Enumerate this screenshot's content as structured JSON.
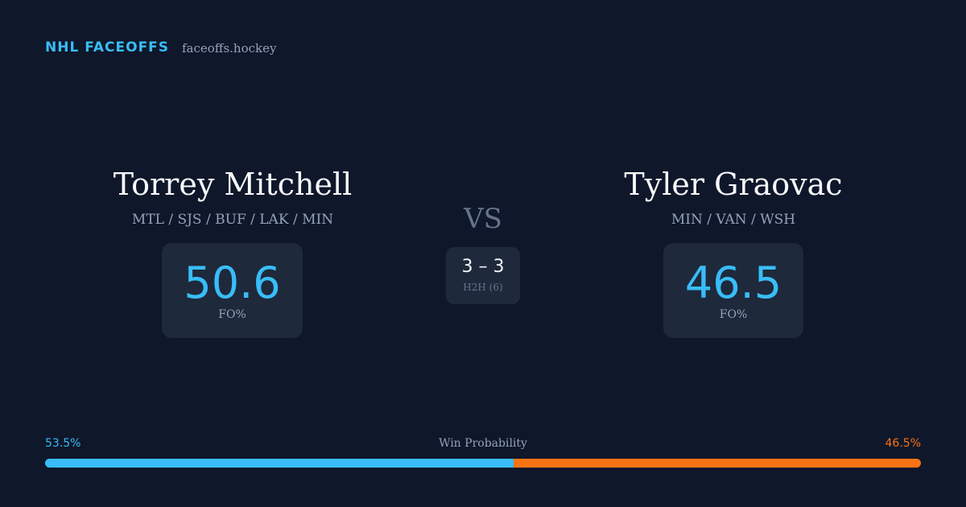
{
  "header": {
    "title": "NHL FACEOFFS",
    "site": "faceoffs.hockey"
  },
  "players": [
    {
      "name": "Torrey Mitchell",
      "teams": "MTL / SJS / BUF / LAK / MIN",
      "fo_pct": 50.6,
      "fo_label": "FO%"
    },
    {
      "name": "Tyler Graovac",
      "teams": "MIN / VAN / WSH",
      "fo_pct": 46.5,
      "fo_label": "FO%"
    }
  ],
  "versus": "VS",
  "h2h": {
    "record": "3 – 3",
    "label": "H2H (6)"
  },
  "win_probability": {
    "title": "Win Probability",
    "left": {
      "value": 53.5,
      "label": "53.5%",
      "color": "#38bdf8"
    },
    "right": {
      "value": 46.5,
      "label": "46.5%",
      "color": "#f97316"
    }
  }
}
